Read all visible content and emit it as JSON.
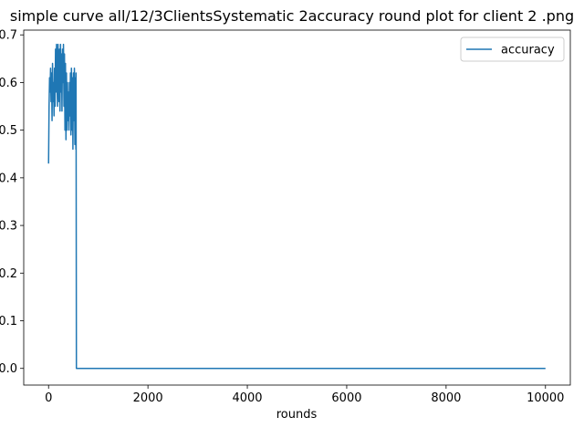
{
  "chart_data": {
    "type": "line",
    "title": "simple curve all/12/3ClientsSystematic 2accuracy round plot for client 2 .png",
    "xlabel": "rounds",
    "ylabel": "",
    "xlim": [
      -500,
      10500
    ],
    "ylim": [
      -0.035,
      0.71
    ],
    "x_ticks": [
      0,
      2000,
      4000,
      6000,
      8000,
      10000
    ],
    "x_tick_labels": [
      "0",
      "2000",
      "4000",
      "6000",
      "8000",
      "10000"
    ],
    "y_ticks": [
      0.0,
      0.1,
      0.2,
      0.3,
      0.4,
      0.5,
      0.6,
      0.7
    ],
    "y_tick_labels": [
      "0.0",
      "0.1",
      "0.2",
      "0.3",
      "0.4",
      "0.5",
      "0.6",
      "0.7"
    ],
    "grid": false,
    "legend_position": "top-right",
    "series": [
      {
        "name": "accuracy",
        "color": "#1f77b4",
        "x": [
          0,
          10,
          20,
          30,
          40,
          50,
          60,
          70,
          80,
          90,
          100,
          110,
          120,
          130,
          140,
          150,
          160,
          170,
          180,
          190,
          200,
          210,
          220,
          230,
          240,
          250,
          260,
          270,
          280,
          290,
          300,
          310,
          320,
          330,
          340,
          350,
          360,
          370,
          380,
          390,
          400,
          410,
          420,
          430,
          440,
          450,
          460,
          470,
          480,
          490,
          500,
          510,
          520,
          530,
          540,
          550,
          553,
          560,
          570,
          600,
          1000,
          2000,
          3000,
          4000,
          5000,
          6000,
          7000,
          8000,
          9000,
          10000
        ],
        "y": [
          0.43,
          0.55,
          0.61,
          0.58,
          0.63,
          0.56,
          0.62,
          0.52,
          0.64,
          0.56,
          0.6,
          0.53,
          0.63,
          0.55,
          0.67,
          0.58,
          0.68,
          0.6,
          0.55,
          0.68,
          0.62,
          0.56,
          0.67,
          0.54,
          0.68,
          0.58,
          0.66,
          0.54,
          0.67,
          0.6,
          0.68,
          0.55,
          0.66,
          0.5,
          0.64,
          0.48,
          0.62,
          0.5,
          0.6,
          0.52,
          0.58,
          0.5,
          0.6,
          0.53,
          0.62,
          0.49,
          0.63,
          0.5,
          0.61,
          0.46,
          0.62,
          0.52,
          0.63,
          0.47,
          0.61,
          0.46,
          0.62,
          0.0,
          0.0,
          0.0,
          0.0,
          0.0,
          0.0,
          0.0,
          0.0,
          0.0,
          0.0,
          0.0,
          0.0,
          0.0
        ]
      }
    ]
  }
}
